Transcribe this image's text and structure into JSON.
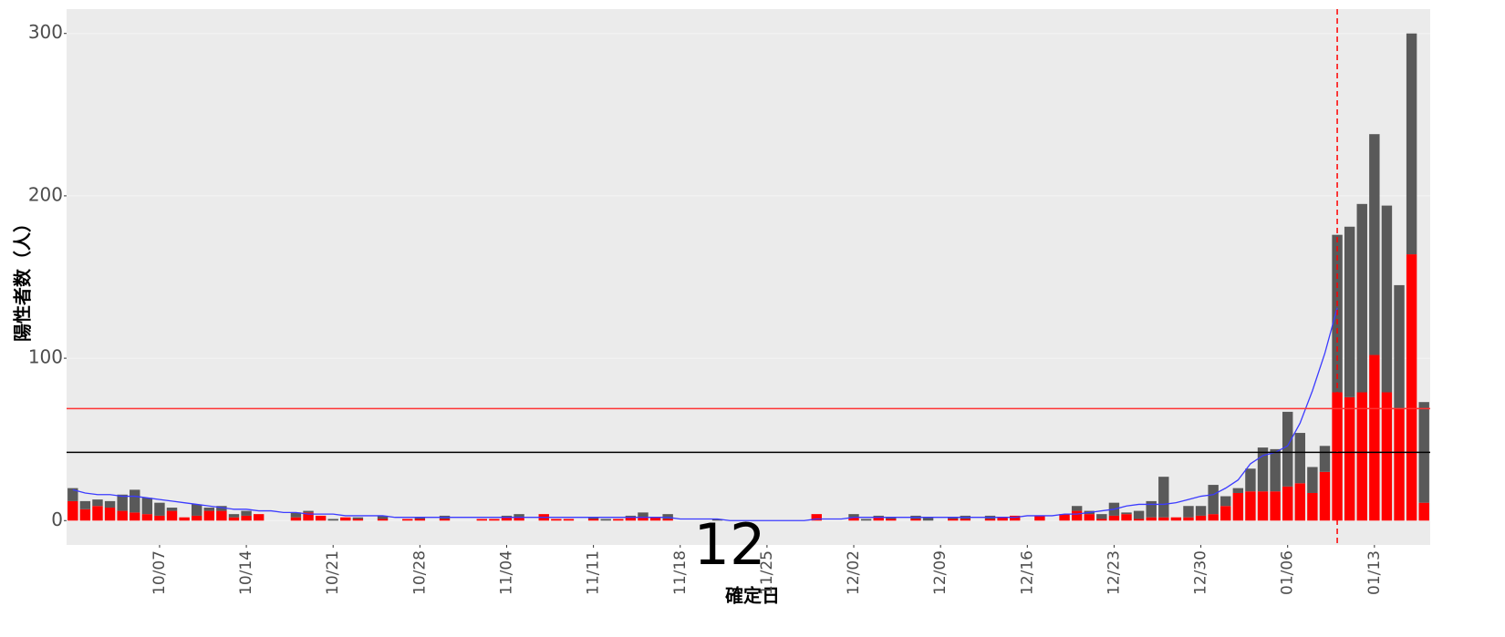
{
  "chart_data": {
    "type": "stacked_bar_line",
    "y_label": "陽性者数（人）",
    "x_label": "確定日",
    "annotation": "12",
    "categories": [
      null,
      null,
      null,
      null,
      null,
      null,
      null,
      "10/07",
      null,
      null,
      null,
      null,
      null,
      null,
      "10/14",
      null,
      null,
      null,
      null,
      null,
      null,
      "10/21",
      null,
      null,
      null,
      null,
      null,
      null,
      "10/28",
      null,
      null,
      null,
      null,
      null,
      null,
      "11/04",
      null,
      null,
      null,
      null,
      null,
      null,
      "11/11",
      null,
      null,
      null,
      null,
      null,
      null,
      "11/18",
      null,
      null,
      null,
      null,
      null,
      null,
      "11/25",
      null,
      null,
      null,
      null,
      null,
      null,
      "12/02",
      null,
      null,
      null,
      null,
      null,
      null,
      "12/09",
      null,
      null,
      null,
      null,
      null,
      null,
      "12/16",
      null,
      null,
      null,
      null,
      null,
      null,
      "12/23",
      null,
      null,
      null,
      null,
      null,
      null,
      "12/30",
      null,
      null,
      null,
      null,
      null,
      null,
      "01/06",
      null,
      null,
      null,
      null,
      null,
      null,
      "01/13",
      null,
      null,
      null,
      null
    ],
    "series": [
      {
        "color": "#ff0000",
        "values": [
          12,
          7,
          9,
          8,
          6,
          5,
          4,
          3,
          6,
          2,
          3,
          6,
          6,
          2,
          3,
          4,
          0,
          0,
          2,
          5,
          3,
          0,
          2,
          1,
          0,
          1,
          0,
          1,
          1,
          0,
          1,
          0,
          0,
          1,
          1,
          2,
          2,
          0,
          4,
          1,
          1,
          0,
          1,
          0,
          1,
          2,
          2,
          2,
          1,
          0,
          0,
          0,
          0,
          0,
          0,
          0,
          0,
          0,
          0,
          0,
          4,
          0,
          0,
          2,
          0,
          2,
          1,
          0,
          1,
          0,
          0,
          1,
          1,
          0,
          1,
          2,
          3,
          0,
          3,
          0,
          4,
          6,
          4,
          1,
          3,
          4,
          1,
          2,
          2,
          2,
          2,
          3,
          4,
          9,
          17,
          18,
          18,
          18,
          21,
          23,
          17,
          30,
          79,
          76,
          79,
          102,
          79,
          69,
          164,
          11
        ]
      },
      {
        "color": "#595959",
        "values": [
          8,
          5,
          4,
          4,
          10,
          14,
          10,
          8,
          2,
          0,
          7,
          2,
          3,
          2,
          3,
          0,
          0,
          0,
          3,
          1,
          0,
          1,
          0,
          1,
          0,
          2,
          0,
          0,
          1,
          0,
          2,
          0,
          0,
          0,
          0,
          1,
          2,
          0,
          0,
          0,
          0,
          0,
          1,
          1,
          0,
          1,
          3,
          0,
          3,
          0,
          0,
          0,
          1,
          0,
          0,
          0,
          0,
          0,
          0,
          0,
          0,
          0,
          0,
          2,
          1,
          1,
          1,
          0,
          2,
          2,
          0,
          1,
          2,
          0,
          2,
          0,
          0,
          0,
          0,
          0,
          0,
          3,
          2,
          3,
          8,
          1,
          5,
          10,
          25,
          0,
          7,
          6,
          18,
          6,
          3,
          14,
          27,
          26,
          46,
          31,
          16,
          16,
          97,
          105,
          116,
          136,
          115,
          76,
          136,
          62
        ]
      }
    ],
    "line": {
      "color": "#3b3bff",
      "values": [
        19,
        17,
        16,
        16,
        15,
        15,
        14,
        13,
        12,
        11,
        10,
        9,
        8,
        7,
        7,
        6,
        6,
        5,
        5,
        4,
        4,
        4,
        3,
        3,
        3,
        3,
        2,
        2,
        2,
        2,
        2,
        2,
        2,
        2,
        2,
        2,
        2,
        2,
        2,
        2,
        2,
        2,
        2,
        2,
        2,
        2,
        2,
        2,
        2,
        1,
        1,
        1,
        1,
        0,
        0,
        0,
        0,
        0,
        0,
        0,
        1,
        1,
        1,
        2,
        2,
        2,
        2,
        2,
        2,
        2,
        2,
        2,
        2,
        2,
        2,
        2,
        2,
        3,
        3,
        3,
        4,
        4,
        5,
        6,
        7,
        9,
        10,
        10,
        10,
        11,
        13,
        15,
        16,
        20,
        25,
        35,
        40,
        42,
        46,
        60,
        80,
        103,
        131,
        null,
        null,
        null,
        null,
        null,
        null,
        null
      ]
    },
    "hlines": [
      {
        "value": 69,
        "color": "#ff3333"
      },
      {
        "value": 42,
        "color": "#000000"
      }
    ],
    "vlines": [
      {
        "index": 102,
        "color": "#ff0000"
      }
    ],
    "ylim": [
      -15,
      315
    ],
    "yticks": [
      0,
      100,
      200,
      300
    ],
    "grid": true
  }
}
